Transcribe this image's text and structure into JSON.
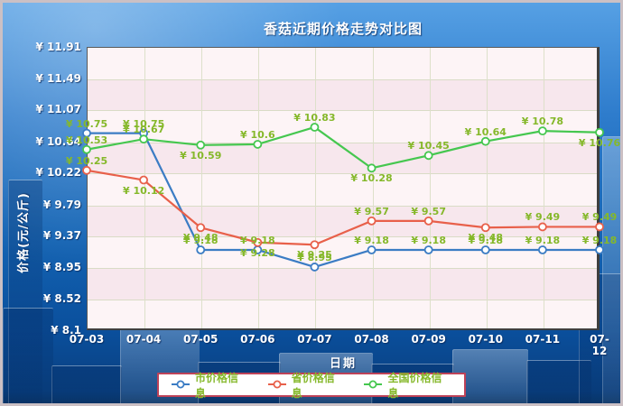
{
  "widget": {
    "frame_border_color": "#cbc0c4",
    "background_accent": "#1464b4"
  },
  "chart_data": {
    "type": "line",
    "title": "香菇近期价格走势对比图",
    "title_color": "#ffffff",
    "xlabel": "日期",
    "ylabel": "价格(元/公斤)",
    "currency_prefix": "¥",
    "x_categories": [
      "07-03",
      "07-04",
      "07-05",
      "07-06",
      "07-07",
      "07-08",
      "07-09",
      "07-10",
      "07-11",
      "07-12"
    ],
    "y_ticks": [
      11.91,
      11.49,
      11.07,
      10.64,
      10.22,
      9.79,
      9.37,
      8.95,
      8.52,
      8.1
    ],
    "ylim": [
      8.1,
      11.91
    ],
    "grid": true,
    "plot_band_colors": [
      "#fdf4f6",
      "#f7e7ed"
    ],
    "data_label_color": "#85b82a",
    "legend_position": "bottom-center",
    "legend_border_color": "#be4258",
    "legend_text_color": "#85b82a",
    "series": [
      {
        "name": "市价格信息",
        "color": "#3b7cc4",
        "values": [
          10.75,
          10.75,
          9.18,
          9.18,
          8.95,
          9.18,
          9.18,
          9.18,
          9.18,
          9.18
        ],
        "label_below": [
          false,
          false,
          false,
          false,
          false,
          false,
          false,
          false,
          false,
          false
        ]
      },
      {
        "name": "省价格信息",
        "color": "#e8604a",
        "values": [
          10.25,
          10.12,
          9.48,
          9.28,
          9.25,
          9.57,
          9.57,
          9.48,
          9.49,
          9.49
        ],
        "label_below": [
          false,
          true,
          true,
          true,
          true,
          false,
          false,
          true,
          false,
          false
        ]
      },
      {
        "name": "全国价格信息",
        "color": "#45c74f",
        "values": [
          10.53,
          10.67,
          10.59,
          10.6,
          10.83,
          10.28,
          10.45,
          10.64,
          10.78,
          10.76
        ],
        "label_below": [
          false,
          false,
          true,
          false,
          false,
          true,
          false,
          false,
          false,
          true
        ]
      }
    ]
  }
}
